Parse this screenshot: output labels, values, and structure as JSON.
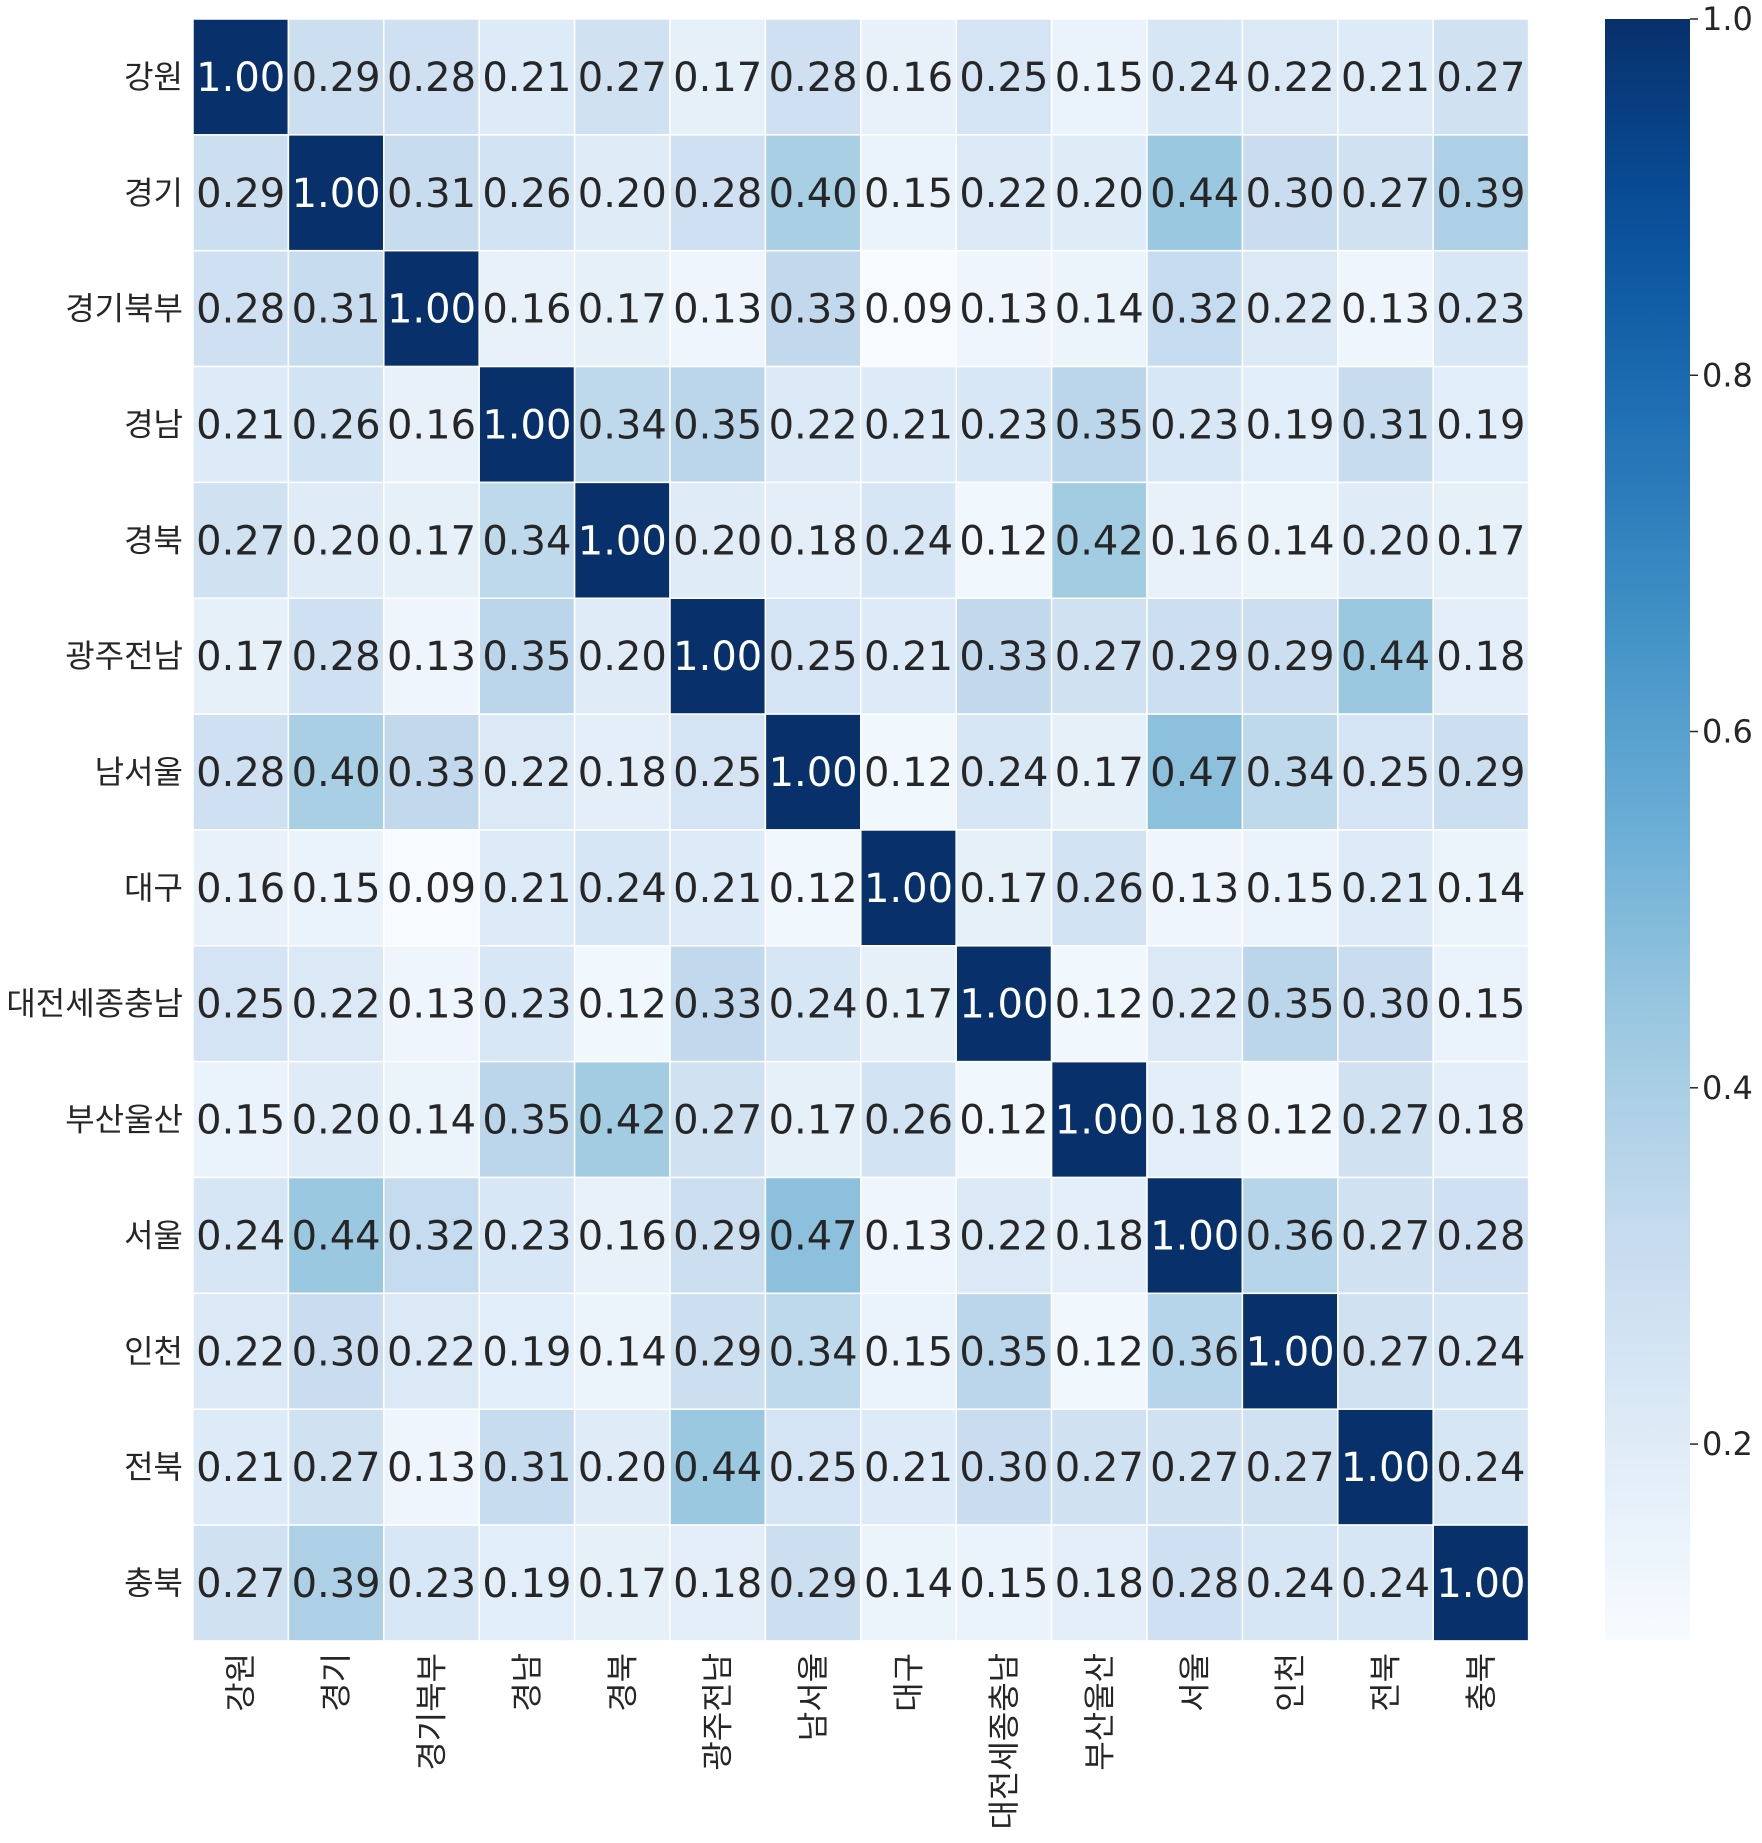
{
  "chart_data": {
    "type": "heatmap",
    "title": "",
    "xlabel": "",
    "ylabel": "",
    "labels": [
      "강원",
      "경기",
      "경기북부",
      "경남",
      "경북",
      "광주전남",
      "남서울",
      "대구",
      "대전세종충남",
      "부산울산",
      "서울",
      "인천",
      "전북",
      "충북"
    ],
    "values": [
      [
        1.0,
        0.29,
        0.28,
        0.21,
        0.27,
        0.17,
        0.28,
        0.16,
        0.25,
        0.15,
        0.24,
        0.22,
        0.21,
        0.27
      ],
      [
        0.29,
        1.0,
        0.31,
        0.26,
        0.2,
        0.28,
        0.4,
        0.15,
        0.22,
        0.2,
        0.44,
        0.3,
        0.27,
        0.39
      ],
      [
        0.28,
        0.31,
        1.0,
        0.16,
        0.17,
        0.13,
        0.33,
        0.09,
        0.13,
        0.14,
        0.32,
        0.22,
        0.13,
        0.23
      ],
      [
        0.21,
        0.26,
        0.16,
        1.0,
        0.34,
        0.35,
        0.22,
        0.21,
        0.23,
        0.35,
        0.23,
        0.19,
        0.31,
        0.19
      ],
      [
        0.27,
        0.2,
        0.17,
        0.34,
        1.0,
        0.2,
        0.18,
        0.24,
        0.12,
        0.42,
        0.16,
        0.14,
        0.2,
        0.17
      ],
      [
        0.17,
        0.28,
        0.13,
        0.35,
        0.2,
        1.0,
        0.25,
        0.21,
        0.33,
        0.27,
        0.29,
        0.29,
        0.44,
        0.18
      ],
      [
        0.28,
        0.4,
        0.33,
        0.22,
        0.18,
        0.25,
        1.0,
        0.12,
        0.24,
        0.17,
        0.47,
        0.34,
        0.25,
        0.29
      ],
      [
        0.16,
        0.15,
        0.09,
        0.21,
        0.24,
        0.21,
        0.12,
        1.0,
        0.17,
        0.26,
        0.13,
        0.15,
        0.21,
        0.14
      ],
      [
        0.25,
        0.22,
        0.13,
        0.23,
        0.12,
        0.33,
        0.24,
        0.17,
        1.0,
        0.12,
        0.22,
        0.35,
        0.3,
        0.15
      ],
      [
        0.15,
        0.2,
        0.14,
        0.35,
        0.42,
        0.27,
        0.17,
        0.26,
        0.12,
        1.0,
        0.18,
        0.12,
        0.27,
        0.18
      ],
      [
        0.24,
        0.44,
        0.32,
        0.23,
        0.16,
        0.29,
        0.47,
        0.13,
        0.22,
        0.18,
        1.0,
        0.36,
        0.27,
        0.28
      ],
      [
        0.22,
        0.3,
        0.22,
        0.19,
        0.14,
        0.29,
        0.34,
        0.15,
        0.35,
        0.12,
        0.36,
        1.0,
        0.27,
        0.24
      ],
      [
        0.21,
        0.27,
        0.13,
        0.31,
        0.2,
        0.44,
        0.25,
        0.21,
        0.3,
        0.27,
        0.27,
        0.27,
        1.0,
        0.24
      ],
      [
        0.27,
        0.39,
        0.23,
        0.19,
        0.17,
        0.18,
        0.29,
        0.14,
        0.15,
        0.18,
        0.28,
        0.24,
        0.24,
        1.0
      ]
    ],
    "value_format": "0.00",
    "colormap": "Blues",
    "vmin": 0.09,
    "vmax": 1.0,
    "colorbar": {
      "ticks": [
        0.2,
        0.4,
        0.6,
        0.8,
        1.0
      ],
      "tick_labels": [
        "0.2",
        "0.4",
        "0.6",
        "0.8",
        "1.0"
      ]
    },
    "grid_line_color": "#ffffff",
    "annotation_colors": {
      "dark_text": "#262626",
      "light_text": "#ffffff"
    }
  }
}
